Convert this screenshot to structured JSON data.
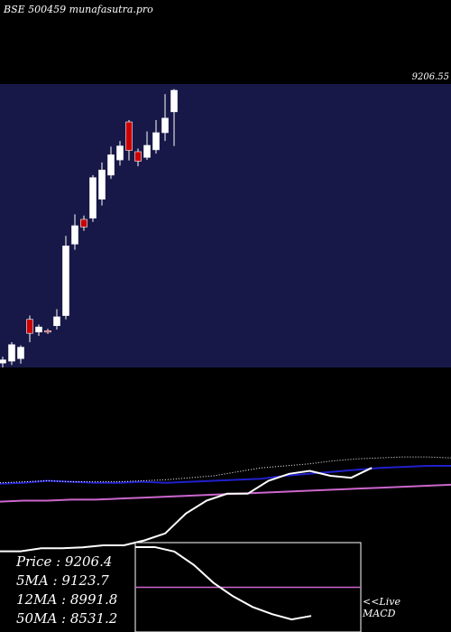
{
  "header": {
    "title": "BSE 500459 munafasutra.pro"
  },
  "price_level_label": "9206.55",
  "stats": {
    "price": "Price   : 9206.4",
    "ma5": "5MA : 9123.7",
    "ma12": "12MA : 8991.8",
    "ma50": "50MA : 8531.2"
  },
  "macd_tag": {
    "line1": "<<Live",
    "line2": "MACD"
  },
  "colors": {
    "background": "#000000",
    "candle_panel": "#181848",
    "bull_candle": "#ffffff",
    "bear_candle": "#cc0000",
    "ma_blue": "#2020cc",
    "ma_magenta": "#cc66cc",
    "line_white": "#ffffff"
  },
  "chart_data": {
    "type": "candlestick",
    "candles": [
      {
        "o": 7395,
        "h": 7445,
        "l": 7360,
        "c": 7420
      },
      {
        "o": 7410,
        "h": 7560,
        "l": 7380,
        "c": 7540
      },
      {
        "o": 7430,
        "h": 7535,
        "l": 7390,
        "c": 7520
      },
      {
        "o": 7740,
        "h": 7770,
        "l": 7560,
        "c": 7630
      },
      {
        "o": 7640,
        "h": 7700,
        "l": 7610,
        "c": 7680
      },
      {
        "o": 7650,
        "h": 7665,
        "l": 7625,
        "c": 7645
      },
      {
        "o": 7690,
        "h": 7820,
        "l": 7660,
        "c": 7760
      },
      {
        "o": 7770,
        "h": 8400,
        "l": 7740,
        "c": 8320
      },
      {
        "o": 8335,
        "h": 8570,
        "l": 8290,
        "c": 8480
      },
      {
        "o": 8530,
        "h": 8560,
        "l": 8440,
        "c": 8470
      },
      {
        "o": 8540,
        "h": 8880,
        "l": 8510,
        "c": 8860
      },
      {
        "o": 8690,
        "h": 8980,
        "l": 8640,
        "c": 8920
      },
      {
        "o": 8880,
        "h": 9105,
        "l": 8850,
        "c": 9040
      },
      {
        "o": 9000,
        "h": 9150,
        "l": 8955,
        "c": 9110
      },
      {
        "o": 9300,
        "h": 9315,
        "l": 8995,
        "c": 9075
      },
      {
        "o": 9065,
        "h": 9090,
        "l": 8950,
        "c": 8990
      },
      {
        "o": 9020,
        "h": 9225,
        "l": 9000,
        "c": 9115
      },
      {
        "o": 9080,
        "h": 9315,
        "l": 9050,
        "c": 9215
      },
      {
        "o": 9215,
        "h": 9520,
        "l": 9150,
        "c": 9330
      },
      {
        "o": 9380,
        "h": 9560,
        "l": 9110,
        "c": 9550
      }
    ],
    "price_range": [
      7360,
      9600
    ],
    "ma_lines": {
      "blue": [
        0.28,
        0.27,
        0.25,
        0.26,
        0.27,
        0.27,
        0.26,
        0.27,
        0.26,
        0.25,
        0.24,
        0.23,
        0.2,
        0.18,
        0.16,
        0.14,
        0.12,
        0.11,
        0.1,
        0.1
      ],
      "magenta": [
        0.46,
        0.45,
        0.45,
        0.44,
        0.44,
        0.43,
        0.42,
        0.41,
        0.4,
        0.39,
        0.38,
        0.37,
        0.36,
        0.35,
        0.34,
        0.33,
        0.32,
        0.31,
        0.3,
        0.29
      ],
      "white": [
        0.96,
        0.96,
        0.93,
        0.93,
        0.92,
        0.9,
        0.9,
        0.85,
        0.78,
        0.58,
        0.45,
        0.38,
        0.38,
        0.25,
        0.18,
        0.15,
        0.2,
        0.22,
        0.12,
        0.08
      ],
      "dotted": [
        0.27,
        0.26,
        0.25,
        0.26,
        0.26,
        0.26,
        0.25,
        0.24,
        0.22,
        0.2,
        0.16,
        0.12,
        0.1,
        0.08,
        0.05,
        0.03,
        0.02,
        0.01,
        0.01,
        0.02
      ]
    },
    "macd": {
      "line": [
        0.05,
        0.05,
        0.1,
        0.25,
        0.45,
        0.6,
        0.72,
        0.8,
        0.86,
        0.82
      ],
      "signal": 0.5
    }
  }
}
